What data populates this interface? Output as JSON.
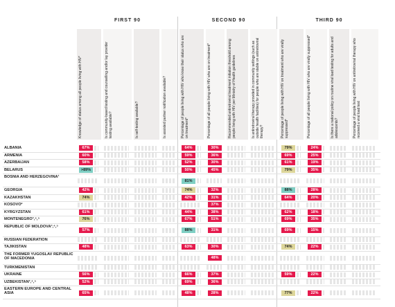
{
  "groups": [
    "FIRST 90",
    "SECOND 90",
    "THIRD 90"
  ],
  "columns": [
    "Knowledge of status among all people living with HIV*",
    "Is community-based testing and counselling and/or lay provider testing available?",
    "Is self-testing available?",
    "Is assisted partner notification available?",
    "Percentage of people living with HIV who know their status who are on treatment*",
    "Percentage of all people living with HIV who are on treatment*",
    "Recommended antiretroviral treatment initiation threshold among people living with HIV per Ministry of Health guidelines",
    "Is antiretroviral therapy provided in community settings (such as outside health facilities) for people who are stable on antiretroviral therapy?",
    "Percentage of people living with HIV on treatment who are virally suppressed*",
    "Percentage of all people living with HIV who are virally suppressed*",
    "Is there a national policy on routine viral load testing for adults and adolescents?",
    "Percentage of people living with HIV on antiretroviral therapy who received a viral load test"
  ],
  "rows": [
    {
      "name": "ALBANIA",
      "cells": [
        "67%",
        null,
        null,
        null,
        "64%",
        "30%",
        null,
        null,
        "79%",
        "24%",
        null,
        null
      ]
    },
    {
      "name": "ARMENIA",
      "cells": [
        "60%",
        null,
        null,
        null,
        "59%",
        "36%",
        null,
        null,
        "69%",
        "25%",
        null,
        null
      ]
    },
    {
      "name": "AZERBAIJAN",
      "cells": [
        "58%",
        null,
        null,
        null,
        "52%",
        "30%",
        null,
        null,
        "61%",
        "19%",
        null,
        null
      ]
    },
    {
      "name": "BELARUS",
      "cells": [
        ">89%",
        null,
        null,
        null,
        "50%",
        "45%",
        null,
        null,
        "79%",
        "35%",
        null,
        null
      ]
    },
    {
      "name": "BOSNIA AND HERZEGOVINA¹",
      "cells": [
        null,
        null,
        null,
        null,
        "81%",
        null,
        null,
        null,
        null,
        null,
        null,
        null
      ]
    },
    {
      "name": "GEORGIA",
      "cells": [
        "42%",
        null,
        null,
        null,
        "74%",
        "32%",
        null,
        null,
        "88%",
        "28%",
        null,
        null
      ]
    },
    {
      "name": "KAZAKHSTAN",
      "cells": [
        "74%",
        null,
        null,
        null,
        "42%",
        "31%",
        null,
        null,
        "64%",
        "20%",
        null,
        null
      ]
    },
    {
      "name": "KOSOVO²",
      "cells": [
        null,
        null,
        null,
        null,
        null,
        "37%",
        null,
        null,
        null,
        null,
        null,
        null
      ]
    },
    {
      "name": "KYRGYZSTAN",
      "cells": [
        "61%",
        null,
        null,
        null,
        "44%",
        "38%",
        null,
        null,
        "62%",
        "18%",
        null,
        null
      ]
    },
    {
      "name": "MONTENEGRO³,⁴,⁵",
      "cells": [
        "76%",
        null,
        null,
        null,
        "67%",
        "51%",
        null,
        null,
        "69%",
        "35%",
        null,
        null
      ]
    },
    {
      "name": "REPUBLIC OF MOLDOVA³,⁴,⁵",
      "cells": [
        "57%",
        null,
        null,
        null,
        "88%",
        "31%",
        null,
        null,
        "69%",
        "15%",
        null,
        null
      ]
    },
    {
      "name": "RUSSIAN FEDERATION",
      "cells": [
        null,
        null,
        null,
        null,
        null,
        null,
        null,
        null,
        null,
        null,
        null,
        null
      ]
    },
    {
      "name": "TAJIKISTAN",
      "cells": [
        "48%",
        null,
        null,
        null,
        "63%",
        "30%",
        null,
        null,
        "74%",
        "22%",
        null,
        null
      ]
    },
    {
      "name": "THE FORMER YUGOSLAV REPUBLIC OF MACEDONIA",
      "cells": [
        null,
        null,
        null,
        null,
        null,
        "48%",
        null,
        null,
        null,
        null,
        null,
        null
      ]
    },
    {
      "name": "TURKMENISTAN",
      "cells": [
        null,
        null,
        null,
        null,
        null,
        null,
        null,
        null,
        null,
        null,
        null,
        null
      ]
    },
    {
      "name": "UKRAINE",
      "cells": [
        "56%",
        null,
        null,
        null,
        "66%",
        "37%",
        null,
        null,
        "59%",
        "22%",
        null,
        null
      ]
    },
    {
      "name": "UZBEKISTAN³,⁴,⁵",
      "cells": [
        "52%",
        null,
        null,
        null,
        "69%",
        "36%",
        null,
        null,
        null,
        null,
        null,
        null
      ]
    },
    {
      "name": "EASTERN EUROPE AND CENTRAL ASIA",
      "cells": [
        "65%",
        null,
        null,
        null,
        "48%",
        "28%",
        null,
        null,
        "77%",
        "22%",
        null,
        null
      ]
    }
  ]
}
